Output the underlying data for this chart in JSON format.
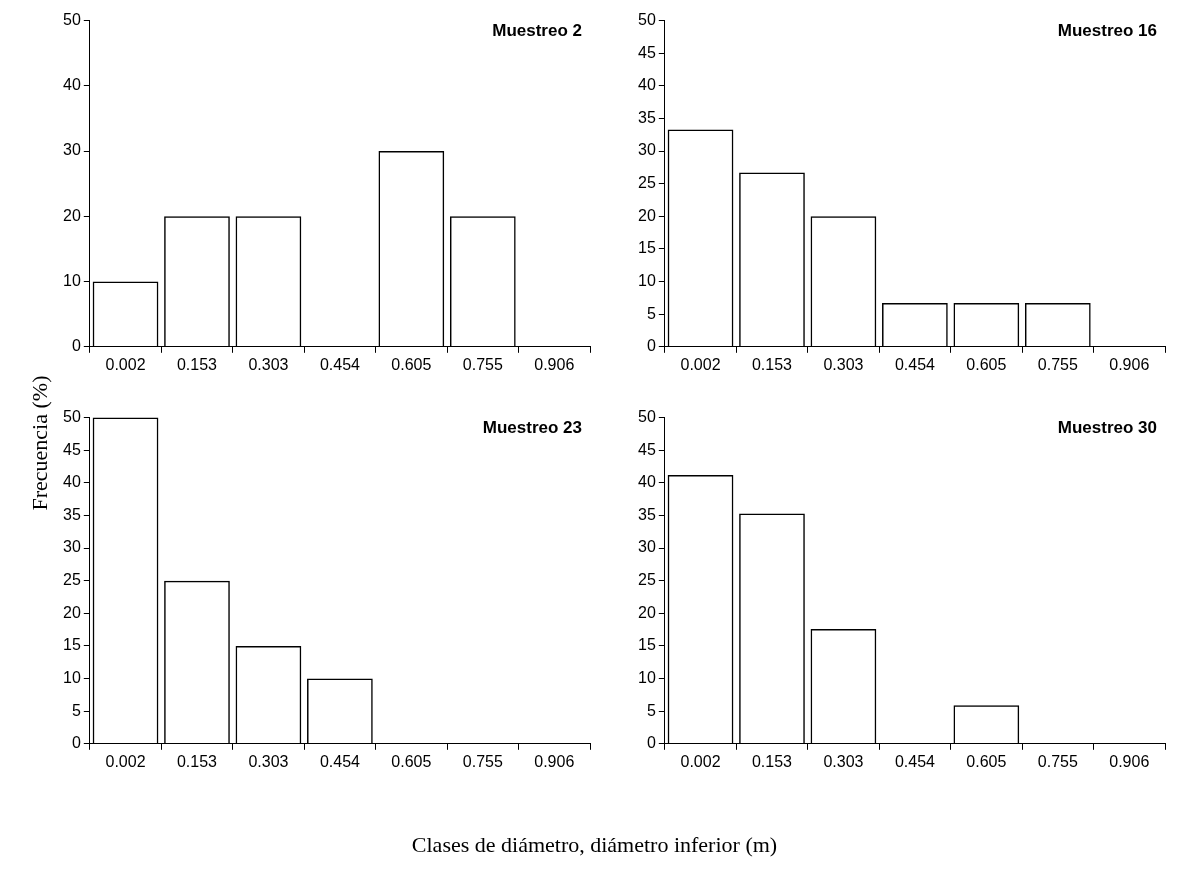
{
  "chart_data": [
    {
      "type": "bar",
      "title": "Muestreo 2",
      "ylabel": "Frecuencia (%)",
      "xlabel": "Clases de diámetro, diámetro inferior (m)",
      "categories": [
        "0.002",
        "0.153",
        "0.303",
        "0.454",
        "0.605",
        "0.755",
        "0.906"
      ],
      "values": [
        10,
        20,
        20,
        0,
        30,
        20,
        0
      ],
      "color": "#000000",
      "ylim": [
        0,
        50
      ],
      "yticks": [
        0,
        10,
        20,
        30,
        40,
        50
      ],
      "grid": false,
      "legend": false
    },
    {
      "type": "bar",
      "title": "Muestreo 16",
      "categories": [
        "0.002",
        "0.153",
        "0.303",
        "0.454",
        "0.605",
        "0.755",
        "0.906"
      ],
      "values": [
        33.3,
        26.7,
        20,
        6.7,
        6.7,
        6.7,
        0
      ],
      "color": "#000000",
      "ylim": [
        0,
        50
      ],
      "yticks": [
        0,
        5,
        10,
        15,
        20,
        25,
        30,
        35,
        40,
        45,
        50
      ],
      "grid": false,
      "legend": false
    },
    {
      "type": "bar",
      "title": "Muestreo 23",
      "categories": [
        "0.002",
        "0.153",
        "0.303",
        "0.454",
        "0.605",
        "0.755",
        "0.906"
      ],
      "values": [
        50,
        25,
        15,
        10,
        0,
        0,
        0
      ],
      "color": "#000000",
      "ylim": [
        0,
        50
      ],
      "yticks": [
        0,
        5,
        10,
        15,
        20,
        25,
        30,
        35,
        40,
        45,
        50
      ],
      "grid": false,
      "legend": false
    },
    {
      "type": "bar",
      "title": "Muestreo 30",
      "categories": [
        "0.002",
        "0.153",
        "0.303",
        "0.454",
        "0.605",
        "0.755",
        "0.906"
      ],
      "values": [
        41.2,
        35.3,
        17.6,
        0,
        5.9,
        0,
        0
      ],
      "color": "#000000",
      "ylim": [
        0,
        50
      ],
      "yticks": [
        0,
        5,
        10,
        15,
        20,
        25,
        30,
        35,
        40,
        45,
        50
      ],
      "grid": false,
      "legend": false
    }
  ]
}
